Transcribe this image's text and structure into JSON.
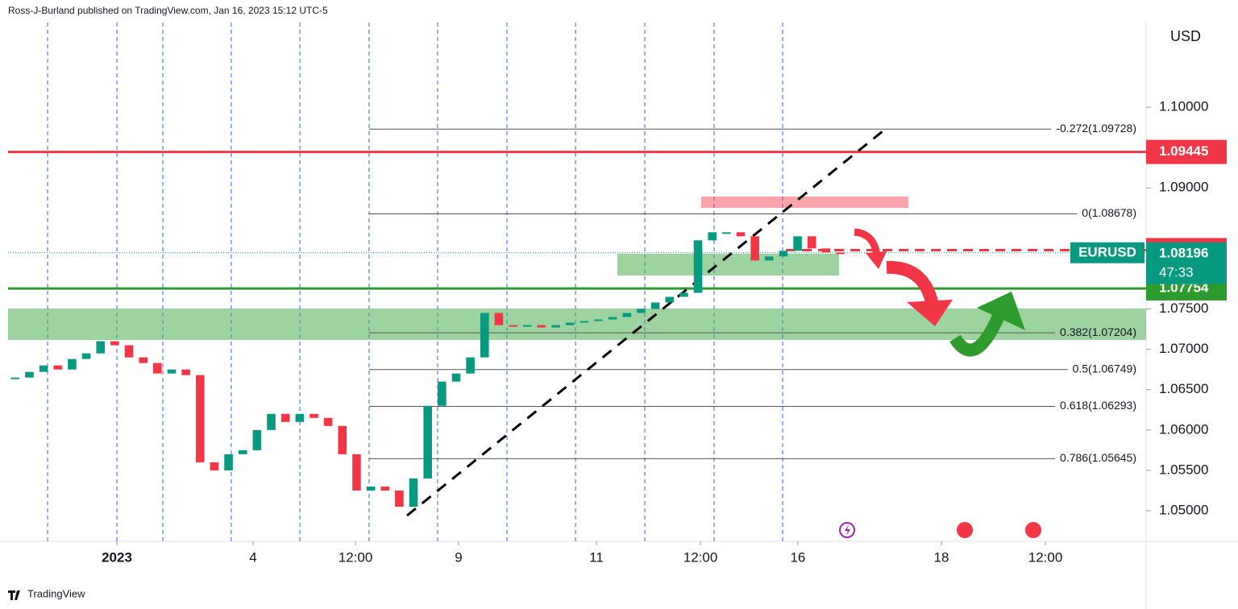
{
  "chart_data": {
    "type": "candlestick",
    "header": "Ross-J-Burland published on TradingView.com, Jan 16, 2023 15:12 UTC-5",
    "brand": "TradingView",
    "currency": "USD",
    "symbol": "EURUSD",
    "countdown": "47:33",
    "last_price": 1.08196,
    "values": [
      1.0665,
      1.0672,
      1.068,
      1.0675,
      1.0688,
      1.0695,
      1.071,
      1.0705,
      1.069,
      1.0683,
      1.067,
      1.0675,
      1.0668,
      1.056,
      1.055,
      1.057,
      1.0575,
      1.06,
      1.062,
      1.061,
      1.062,
      1.0615,
      1.0605,
      1.057,
      1.0525,
      1.053,
      1.0525,
      1.0505,
      1.054,
      1.063,
      1.066,
      1.067,
      1.069,
      1.0745,
      1.073,
      1.0728,
      1.073,
      1.0727,
      1.073,
      1.0733,
      1.0735,
      1.0737,
      1.074,
      1.0745,
      1.075,
      1.0758,
      1.0765,
      1.077,
      1.0835,
      1.0845,
      1.0845,
      1.084,
      1.081,
      1.0815,
      1.0822,
      1.084,
      1.0825,
      1.082,
      1.08196
    ],
    "up_color": "#089981",
    "down_color": "#f23645",
    "xlim": [
      0,
      80
    ],
    "ylim": [
      1.04621,
      1.11048
    ],
    "yticks": [
      {
        "value": 1.1,
        "label": "1.10000"
      },
      {
        "value": 1.09,
        "label": "1.09000"
      },
      {
        "value": 1.075,
        "label": "1.07500"
      },
      {
        "value": 1.07,
        "label": "1.07000"
      },
      {
        "value": 1.065,
        "label": "1.06500"
      },
      {
        "value": 1.06,
        "label": "1.06000"
      },
      {
        "value": 1.055,
        "label": "1.05500"
      },
      {
        "value": 1.05,
        "label": "1.05000"
      }
    ],
    "xticks": [
      {
        "value": 7.65,
        "label": "2023"
      },
      {
        "value": 17.22,
        "label": "4"
      },
      {
        "value": 24.42,
        "label": "12:00"
      },
      {
        "value": 31.67,
        "label": "9"
      },
      {
        "value": 41.36,
        "label": "11"
      },
      {
        "value": 48.67,
        "label": "12:00"
      },
      {
        "value": 55.52,
        "label": "16"
      },
      {
        "value": 65.61,
        "label": "18"
      },
      {
        "value": 72.92,
        "label": "12:00"
      }
    ],
    "vlines": [
      2.78,
      7.65,
      10.88,
      15.69,
      20.51,
      25.38,
      30.2,
      35.07,
      39.89,
      44.76,
      49.63,
      54.45
    ],
    "levels": [
      {
        "value": 1.09445,
        "color": "#f23645"
      },
      {
        "value": 1.08229,
        "color": "#f23645",
        "style": "dashed"
      },
      {
        "value": 1.07754,
        "color": "#2e9b2e"
      }
    ],
    "fib": [
      {
        "label": "-0.272(1.09728)",
        "value": 1.09728
      },
      {
        "label": "0(1.08678)",
        "value": 1.08678
      },
      {
        "label": "0.382(1.07204)",
        "value": 1.07204
      },
      {
        "label": "0.5(1.06749)",
        "value": 1.06749
      },
      {
        "label": "0.618(1.06293)",
        "value": 1.06293
      },
      {
        "label": "0.786(1.05645)",
        "value": 1.05645
      }
    ]
  }
}
